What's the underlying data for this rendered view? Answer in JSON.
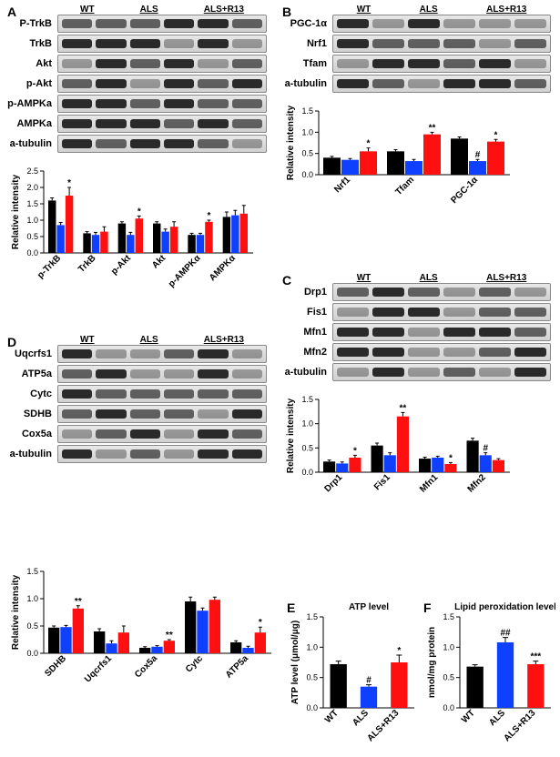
{
  "panels": {
    "A": {
      "label": "A",
      "groups": [
        "WT",
        "ALS",
        "ALS+R13"
      ],
      "blots": [
        "P-TrkB",
        "TrkB",
        "Akt",
        "p-Akt",
        "p-AMPKa",
        "AMPKa",
        "a-tubulin"
      ],
      "chart": {
        "ylabel": "Relative intensity",
        "ylim": [
          0,
          2.5
        ],
        "ytick_step": 0.5,
        "categories": [
          "p-TrkB",
          "TrkB",
          "p-Akt",
          "Akt",
          "p-AMPKα",
          "AMPKα"
        ],
        "series": [
          {
            "name": "WT",
            "color": "#000000",
            "values": [
              1.6,
              0.6,
              0.9,
              0.9,
              0.55,
              1.1
            ],
            "err": [
              0.08,
              0.05,
              0.05,
              0.05,
              0.05,
              0.15
            ]
          },
          {
            "name": "ALS",
            "color": "#1040ff",
            "values": [
              0.85,
              0.55,
              0.55,
              0.65,
              0.55,
              1.15
            ],
            "err": [
              0.08,
              0.08,
              0.08,
              0.08,
              0.05,
              0.15
            ]
          },
          {
            "name": "ALS+R13",
            "color": "#ff1010",
            "values": [
              1.75,
              0.65,
              1.05,
              0.8,
              0.95,
              1.2
            ],
            "err": [
              0.25,
              0.15,
              0.08,
              0.15,
              0.05,
              0.25
            ]
          }
        ],
        "sig": [
          {
            "cat": "p-TrkB",
            "series": 2,
            "text": "*"
          },
          {
            "cat": "p-Akt",
            "series": 2,
            "text": "*"
          },
          {
            "cat": "p-AMPKα",
            "series": 2,
            "text": "*"
          }
        ]
      }
    },
    "B": {
      "label": "B",
      "groups": [
        "WT",
        "ALS",
        "ALS+R13"
      ],
      "blots": [
        "PGC-1α",
        "Nrf1",
        "Tfam",
        "a-tubulin"
      ],
      "chart": {
        "ylabel": "Relative intensity",
        "ylim": [
          0,
          1.5
        ],
        "ytick_step": 0.5,
        "categories": [
          "Nrf1",
          "Tfam",
          "PGC-1α"
        ],
        "series": [
          {
            "name": "WT",
            "color": "#000000",
            "values": [
              0.4,
              0.55,
              0.85
            ],
            "err": [
              0.03,
              0.04,
              0.04
            ]
          },
          {
            "name": "ALS",
            "color": "#1040ff",
            "values": [
              0.35,
              0.32,
              0.32
            ],
            "err": [
              0.03,
              0.04,
              0.04
            ]
          },
          {
            "name": "ALS+R13",
            "color": "#ff1010",
            "values": [
              0.55,
              0.95,
              0.78
            ],
            "err": [
              0.08,
              0.05,
              0.05
            ]
          }
        ],
        "sig": [
          {
            "cat": "Nrf1",
            "series": 2,
            "text": "*"
          },
          {
            "cat": "Tfam",
            "series": 2,
            "text": "**"
          },
          {
            "cat": "PGC-1α",
            "series": 1,
            "text": "#"
          },
          {
            "cat": "PGC-1α",
            "series": 2,
            "text": "*"
          }
        ]
      }
    },
    "C": {
      "label": "C",
      "groups": [
        "WT",
        "ALS",
        "ALS+R13"
      ],
      "blots": [
        "Drp1",
        "Fis1",
        "Mfn1",
        "Mfn2",
        "a-tubulin"
      ],
      "chart": {
        "ylabel": "Relative intensity",
        "ylim": [
          0,
          1.5
        ],
        "ytick_step": 0.5,
        "categories": [
          "Drp1",
          "Fis1",
          "Mfn1",
          "Mfn2"
        ],
        "series": [
          {
            "name": "WT",
            "color": "#000000",
            "values": [
              0.22,
              0.55,
              0.28,
              0.65
            ],
            "err": [
              0.03,
              0.05,
              0.03,
              0.05
            ]
          },
          {
            "name": "ALS",
            "color": "#1040ff",
            "values": [
              0.18,
              0.35,
              0.3,
              0.35
            ],
            "err": [
              0.03,
              0.05,
              0.03,
              0.05
            ]
          },
          {
            "name": "ALS+R13",
            "color": "#ff1010",
            "values": [
              0.3,
              1.15,
              0.17,
              0.25
            ],
            "err": [
              0.05,
              0.08,
              0.03,
              0.03
            ]
          }
        ],
        "sig": [
          {
            "cat": "Drp1",
            "series": 2,
            "text": "*"
          },
          {
            "cat": "Fis1",
            "series": 2,
            "text": "**"
          },
          {
            "cat": "Mfn1",
            "series": 2,
            "text": "*"
          },
          {
            "cat": "Mfn2",
            "series": 1,
            "text": "#"
          }
        ]
      }
    },
    "D": {
      "label": "D",
      "groups": [
        "WT",
        "ALS",
        "ALS+R13"
      ],
      "blots": [
        "Uqcrfs1",
        "ATP5a",
        "Cytc",
        "SDHB",
        "Cox5a",
        "a-tubulin"
      ],
      "chart": {
        "ylabel": "Relative intensity",
        "ylim": [
          0,
          1.5
        ],
        "ytick_step": 0.5,
        "categories": [
          "SDHB",
          "Uqcrfs1",
          "Cox5a",
          "Cytc",
          "ATP5a"
        ],
        "series": [
          {
            "name": "WT",
            "color": "#000000",
            "values": [
              0.47,
              0.4,
              0.1,
              0.95,
              0.2
            ],
            "err": [
              0.03,
              0.05,
              0.02,
              0.08,
              0.03
            ]
          },
          {
            "name": "ALS",
            "color": "#1040ff",
            "values": [
              0.48,
              0.18,
              0.12,
              0.78,
              0.1
            ],
            "err": [
              0.03,
              0.05,
              0.02,
              0.05,
              0.03
            ]
          },
          {
            "name": "ALS+R13",
            "color": "#ff1010",
            "values": [
              0.82,
              0.38,
              0.23,
              0.98,
              0.38
            ],
            "err": [
              0.05,
              0.12,
              0.02,
              0.05,
              0.1
            ]
          }
        ],
        "sig": [
          {
            "cat": "SDHB",
            "series": 2,
            "text": "**"
          },
          {
            "cat": "Cox5a",
            "series": 2,
            "text": "**"
          },
          {
            "cat": "ATP5a",
            "series": 2,
            "text": "*"
          }
        ]
      }
    },
    "E": {
      "label": "E",
      "title": "ATP level",
      "chart": {
        "ylabel": "ATP level (μmol/μg)",
        "ylim": [
          0,
          1.5
        ],
        "ytick_step": 0.5,
        "categories": [
          "WT",
          "ALS",
          "ALS+R13"
        ],
        "series": [
          {
            "name": "single",
            "colors": [
              "#000000",
              "#1040ff",
              "#ff1010"
            ],
            "values": [
              0.72,
              0.35,
              0.75
            ],
            "err": [
              0.05,
              0.03,
              0.12
            ]
          }
        ],
        "sig": [
          {
            "cat": "ALS",
            "series": 0,
            "text": "#"
          },
          {
            "cat": "ALS+R13",
            "series": 0,
            "text": "*"
          }
        ]
      }
    },
    "F": {
      "label": "F",
      "title": "Lipid peroxidation level",
      "chart": {
        "ylabel": "nmol/mg protein",
        "ylim": [
          0,
          1.5
        ],
        "ytick_step": 0.5,
        "categories": [
          "WT",
          "ALS",
          "ALS+R13"
        ],
        "series": [
          {
            "name": "single",
            "colors": [
              "#000000",
              "#1040ff",
              "#ff1010"
            ],
            "values": [
              0.68,
              1.08,
              0.72
            ],
            "err": [
              0.03,
              0.08,
              0.05
            ]
          }
        ],
        "sig": [
          {
            "cat": "ALS",
            "series": 0,
            "text": "##"
          },
          {
            "cat": "ALS+R13",
            "series": 0,
            "text": "***"
          }
        ]
      }
    }
  },
  "style": {
    "bar_colors": {
      "WT": "#000000",
      "ALS": "#1040ff",
      "ALS+R13": "#ff1010"
    },
    "background": "#ffffff",
    "axis_color": "#000000",
    "font_family": "Arial",
    "panel_label_fontsize": 14,
    "blot_label_fontsize": 11,
    "axis_label_fontsize": 10
  }
}
